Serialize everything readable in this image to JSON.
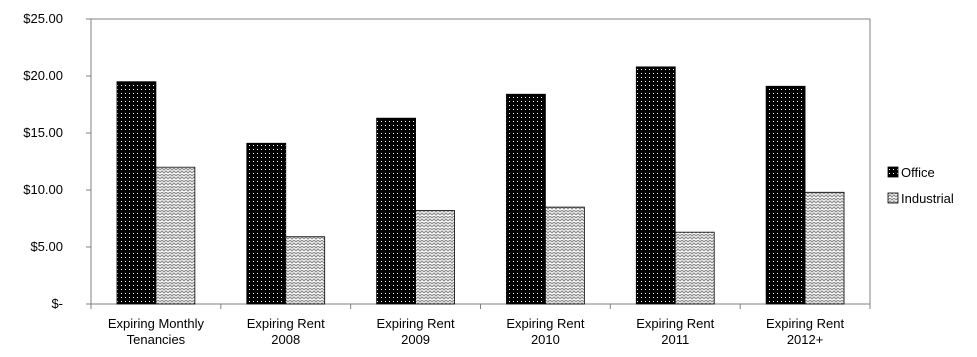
{
  "chart_data": {
    "type": "bar",
    "categories": [
      [
        "Expiring Monthly",
        "Tenancies"
      ],
      [
        "Expiring Rent",
        "2008"
      ],
      [
        "Expiring Rent",
        "2009"
      ],
      [
        "Expiring Rent",
        "2010"
      ],
      [
        "Expiring Rent",
        "2011"
      ],
      [
        "Expiring Rent",
        "2012+"
      ]
    ],
    "series": [
      {
        "name": "Office",
        "values": [
          19.5,
          14.1,
          16.3,
          18.4,
          20.8,
          19.1
        ],
        "pattern": "dots",
        "color": "#000000"
      },
      {
        "name": "Industrial",
        "values": [
          12.0,
          5.9,
          8.2,
          8.5,
          6.3,
          9.8
        ],
        "pattern": "waves",
        "color": "#9a9a9a"
      }
    ],
    "ylim": [
      0,
      25
    ],
    "yticks": [
      0,
      5,
      10,
      15,
      20,
      25
    ],
    "ytick_labels": [
      "$-",
      "$5.00",
      "$10.00",
      "$15.00",
      "$20.00",
      "$25.00"
    ],
    "grid": false,
    "legend_position": "right"
  }
}
